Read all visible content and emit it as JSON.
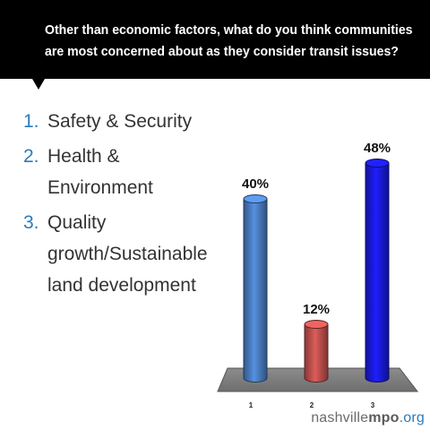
{
  "header": {
    "question_line1": "Other than economic factors, what do you think communities",
    "question_line2": "are most concerned about as they consider transit issues?"
  },
  "options": [
    {
      "number": "1.",
      "lines": [
        "Safety & Security"
      ]
    },
    {
      "number": "2.",
      "lines": [
        "Health &",
        "Environment"
      ]
    },
    {
      "number": "3.",
      "lines": [
        "Quality",
        "growth/Sustainable",
        "land development"
      ]
    }
  ],
  "chart_data": {
    "type": "bar",
    "categories": [
      "1",
      "2",
      "3"
    ],
    "values": [
      40,
      12,
      48
    ],
    "data_labels": [
      "40%",
      "12%",
      "48%"
    ],
    "colors": [
      "#4a7ec2",
      "#c0504d",
      "#1a1adc"
    ],
    "ylim": [
      0,
      50
    ],
    "grid": false,
    "legend": "none"
  },
  "footer": {
    "brand_prefix": "nashville",
    "brand_bold": "mpo",
    "brand_suffix": ".org"
  }
}
